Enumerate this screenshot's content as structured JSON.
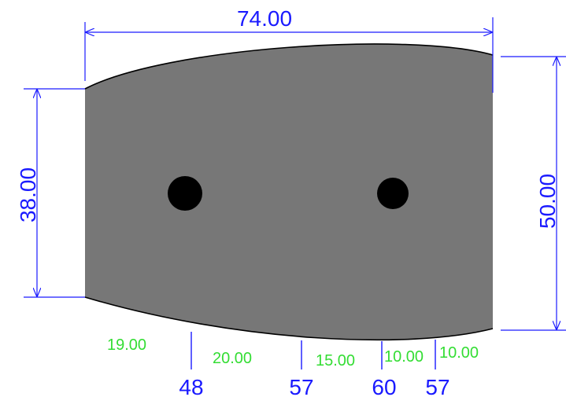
{
  "colors": {
    "part_fill": "#777777",
    "part_edge": "#000000",
    "hole": "#000000",
    "dimension": "#1a1aff",
    "section_label": "#33dd33",
    "background": "#ffffff"
  },
  "dimensions": {
    "overall_width": "74.00",
    "left_height": "38.00",
    "right_height": "50.00"
  },
  "section_widths": [
    "19.00",
    "20.00",
    "15.00",
    "10.00",
    "10.00"
  ],
  "station_heights": [
    "48",
    "57",
    "60",
    "57"
  ]
}
